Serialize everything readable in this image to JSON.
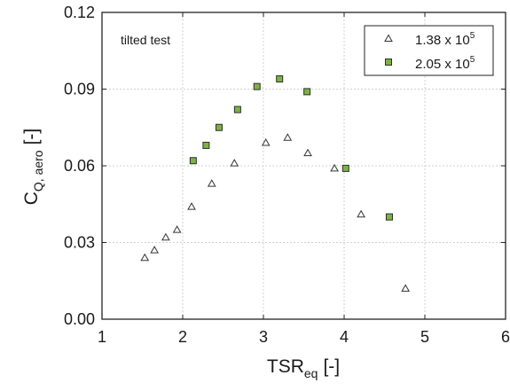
{
  "chart_data": {
    "type": "scatter",
    "annotation": "tilted test",
    "xlabel": {
      "main": "TSR",
      "sub": "eq",
      "unit": "[-]"
    },
    "ylabel": {
      "main": "C",
      "sub": "Q, aero",
      "unit": "[-]"
    },
    "xlim": [
      1,
      6
    ],
    "ylim": [
      0.0,
      0.12
    ],
    "xticks": [
      "1",
      "2",
      "3",
      "4",
      "5",
      "6"
    ],
    "xtick_values": [
      1,
      2,
      3,
      4,
      5,
      6
    ],
    "yticks": [
      "0.00",
      "0.03",
      "0.06",
      "0.09",
      "0.12"
    ],
    "ytick_values": [
      0.0,
      0.03,
      0.06,
      0.09,
      0.12
    ],
    "grid": true,
    "legend_position": "top-right",
    "series": [
      {
        "name": "1.38 x 10",
        "name_exponent": "5",
        "marker": "open-triangle",
        "color": "#ffffff",
        "edge_color": "#333333",
        "x": [
          1.53,
          1.65,
          1.79,
          1.93,
          2.11,
          2.36,
          2.64,
          3.03,
          3.3,
          3.55,
          3.88,
          4.21,
          4.76
        ],
        "y": [
          0.024,
          0.027,
          0.032,
          0.035,
          0.044,
          0.053,
          0.061,
          0.069,
          0.071,
          0.065,
          0.059,
          0.041,
          0.012
        ]
      },
      {
        "name": "2.05 x 10",
        "name_exponent": "5",
        "marker": "filled-square",
        "color": "#7cb342",
        "edge_color": "#2e2e2e",
        "x": [
          2.13,
          2.29,
          2.45,
          2.68,
          2.92,
          3.2,
          3.54,
          4.02,
          4.56
        ],
        "y": [
          0.062,
          0.068,
          0.075,
          0.082,
          0.091,
          0.094,
          0.089,
          0.059,
          0.04
        ]
      }
    ]
  }
}
